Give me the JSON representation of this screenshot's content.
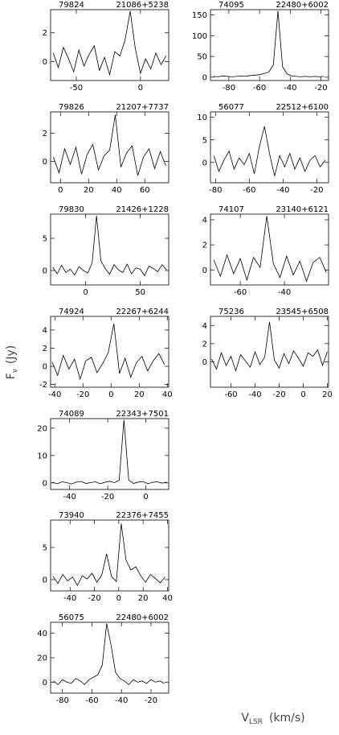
{
  "labels": {
    "y": "F",
    "y_sub": "ν",
    "y_unit": "(Jy)",
    "x": "V",
    "x_sub": "LSR",
    "x_unit": "(km/s)"
  },
  "chart_data": [
    {
      "type": "line",
      "title": "79824",
      "subtitle": "21086+5238",
      "color": "#000000",
      "x": [
        -68,
        -64,
        -60,
        -56,
        -52,
        -48,
        -44,
        -40,
        -36,
        -32,
        -28,
        -24,
        -20,
        -16,
        -12,
        -8,
        -4,
        0,
        4,
        8,
        12,
        16,
        20
      ],
      "values": [
        0.6,
        -0.4,
        1.0,
        0.2,
        -0.7,
        0.8,
        -0.3,
        0.5,
        1.1,
        -0.6,
        0.3,
        -0.9,
        0.7,
        0.4,
        1.5,
        3.5,
        0.9,
        -0.8,
        0.2,
        -0.5,
        0.6,
        -0.2,
        0.4
      ],
      "xlim": [
        -70,
        22
      ],
      "ylim": [
        -1.3,
        3.6
      ],
      "xticks": [
        -50,
        0
      ],
      "yticks": [
        0,
        2
      ]
    },
    {
      "type": "line",
      "title": "74095",
      "subtitle": "22480+6002",
      "color": "#000000",
      "x": [
        -90,
        -87,
        -84,
        -81,
        -78,
        -75,
        -72,
        -69,
        -66,
        -63,
        -60,
        -57,
        -54,
        -51,
        -48,
        -45,
        -42,
        -39,
        -36,
        -33,
        -30,
        -27,
        -24,
        -21,
        -18
      ],
      "values": [
        2,
        1,
        3,
        2,
        1,
        2,
        3,
        2,
        4,
        5,
        6,
        9,
        12,
        30,
        160,
        25,
        8,
        3,
        2,
        1,
        2,
        1,
        2,
        1,
        2
      ],
      "xlim": [
        -92,
        -15
      ],
      "ylim": [
        -8,
        163
      ],
      "xticks": [
        -80,
        -60,
        -40,
        -20
      ],
      "yticks": [
        0,
        50,
        100,
        150
      ]
    },
    {
      "type": "line",
      "title": "79826",
      "subtitle": "21207+7737",
      "color": "#000000",
      "x": [
        -5,
        -1,
        3,
        7,
        11,
        15,
        19,
        23,
        27,
        31,
        35,
        39,
        43,
        47,
        51,
        55,
        59,
        63,
        67,
        71,
        75
      ],
      "values": [
        0.3,
        -0.8,
        0.9,
        -0.2,
        1.0,
        -0.9,
        0.5,
        1.2,
        -0.6,
        0.4,
        0.8,
        3.3,
        -0.4,
        0.6,
        1.1,
        -1.0,
        0.3,
        0.9,
        -0.5,
        0.7,
        -0.3
      ],
      "xlim": [
        -7,
        77
      ],
      "ylim": [
        -1.5,
        3.5
      ],
      "xticks": [
        0,
        20,
        40,
        60
      ],
      "yticks": [
        0,
        2
      ]
    },
    {
      "type": "line",
      "title": "56077",
      "subtitle": "22512+6100",
      "color": "#000000",
      "x": [
        -81,
        -78,
        -75,
        -72,
        -69,
        -66,
        -63,
        -60,
        -57,
        -54,
        -51,
        -48,
        -45,
        -42,
        -39,
        -36,
        -33,
        -30,
        -27,
        -24,
        -21,
        -18,
        -15
      ],
      "values": [
        1.5,
        -2.0,
        0.5,
        2.5,
        -1.5,
        1.0,
        -0.5,
        2.0,
        -2.5,
        3.5,
        8.0,
        2.0,
        -3.0,
        1.5,
        -1.0,
        2.0,
        -1.5,
        1.0,
        -2.0,
        0.5,
        1.5,
        -1.0,
        0.5
      ],
      "xlim": [
        -83,
        -13
      ],
      "ylim": [
        -4.5,
        11.2
      ],
      "xticks": [
        -80,
        -60,
        -40,
        -20
      ],
      "yticks": [
        0,
        5,
        10
      ]
    },
    {
      "type": "line",
      "title": "79830",
      "subtitle": "21426+1228",
      "color": "#000000",
      "x": [
        -30,
        -26,
        -22,
        -18,
        -14,
        -10,
        -6,
        -2,
        2,
        6,
        10,
        14,
        18,
        22,
        26,
        30,
        34,
        38,
        42,
        46,
        50,
        54,
        58,
        62,
        66,
        70,
        74
      ],
      "values": [
        0.5,
        -0.5,
        0.8,
        -0.3,
        0.2,
        -0.7,
        0.6,
        0.0,
        -0.4,
        1.2,
        8.5,
        1.5,
        0.3,
        -0.6,
        0.9,
        0.1,
        -0.3,
        1.0,
        -0.5,
        0.4,
        0.2,
        -0.8,
        0.7,
        0.3,
        -0.2,
        0.9,
        0.1
      ],
      "xlim": [
        -32,
        76
      ],
      "ylim": [
        -2.25,
        8.75
      ],
      "xticks": [
        0,
        50
      ],
      "yticks": [
        0,
        5
      ]
    },
    {
      "type": "line",
      "title": "74107",
      "subtitle": "23140+6121",
      "color": "#000000",
      "x": [
        -72,
        -69,
        -66,
        -63,
        -60,
        -57,
        -54,
        -51,
        -48,
        -45,
        -42,
        -39,
        -36,
        -33,
        -30,
        -27,
        -24,
        -21
      ],
      "values": [
        0.8,
        -0.5,
        1.2,
        -0.3,
        0.9,
        -0.8,
        1.0,
        0.2,
        4.3,
        0.5,
        -0.6,
        1.1,
        -0.4,
        0.7,
        -0.9,
        0.6,
        1.0,
        -0.2
      ],
      "xlim": [
        -73.5,
        -20
      ],
      "ylim": [
        -1.2,
        4.45
      ],
      "xticks": [
        -60,
        -40
      ],
      "yticks": [
        0,
        2,
        4
      ]
    },
    {
      "type": "line",
      "title": "74924",
      "subtitle": "22267+6244",
      "color": "#000000",
      "x": [
        -42,
        -38,
        -34,
        -30,
        -26,
        -22,
        -18,
        -14,
        -10,
        -6,
        -2,
        2,
        6,
        10,
        14,
        18,
        22,
        26,
        30,
        34,
        38
      ],
      "values": [
        0.5,
        -1.0,
        1.2,
        -0.3,
        0.8,
        -1.4,
        0.6,
        1.0,
        -0.7,
        0.3,
        1.5,
        4.7,
        -0.8,
        0.9,
        -1.2,
        0.4,
        1.1,
        -0.5,
        0.6,
        1.4,
        0.2
      ],
      "xlim": [
        -43,
        41
      ],
      "ylim": [
        -2.3,
        5.5
      ],
      "xticks": [
        -40,
        -20,
        0,
        20,
        40
      ],
      "yticks": [
        -2,
        0,
        2,
        4
      ]
    },
    {
      "type": "line",
      "title": "75236",
      "subtitle": "23545+6508",
      "color": "#000000",
      "x": [
        -76,
        -72,
        -68,
        -64,
        -60,
        -56,
        -52,
        -48,
        -44,
        -40,
        -36,
        -32,
        -28,
        -24,
        -20,
        -16,
        -12,
        -8,
        -4,
        0,
        4,
        8,
        12,
        16,
        20
      ],
      "values": [
        0.3,
        -0.8,
        1.0,
        -0.4,
        0.6,
        -1.0,
        0.8,
        0.1,
        -0.6,
        1.1,
        -0.3,
        0.5,
        4.4,
        0.2,
        -0.7,
        0.9,
        -0.2,
        1.2,
        0.4,
        -0.5,
        1.0,
        0.6,
        1.3,
        -0.4,
        1.1
      ],
      "xlim": [
        -77,
        21
      ],
      "ylim": [
        -2.8,
        5
      ],
      "xticks": [
        -60,
        -40,
        -20,
        0,
        20
      ],
      "yticks": [
        0,
        2,
        4
      ]
    },
    {
      "type": "line",
      "title": "74089",
      "subtitle": "22343+7501",
      "color": "#000000",
      "x": [
        -49,
        -46.5,
        -44,
        -41.5,
        -39,
        -36.5,
        -34,
        -31.5,
        -29,
        -26.5,
        -24,
        -21.5,
        -19,
        -16.5,
        -14,
        -11.5,
        -9,
        -6.5,
        -4,
        -1.5,
        1,
        3.5,
        6,
        8.5,
        11
      ],
      "values": [
        0.2,
        -0.3,
        0.4,
        0.1,
        -0.4,
        0.3,
        0.5,
        -0.2,
        0.1,
        0.4,
        -0.3,
        0.2,
        0.6,
        0.1,
        0.9,
        23,
        1.0,
        -0.2,
        0.3,
        0.5,
        -0.3,
        0.2,
        0.4,
        -0.1,
        0.3
      ],
      "xlim": [
        -50,
        12
      ],
      "ylim": [
        -2.4,
        23.5
      ],
      "xticks": [
        -40,
        -20,
        0
      ],
      "yticks": [
        0,
        10,
        20
      ]
    },
    {
      "type": "line",
      "title": "73940",
      "subtitle": "22376+7455",
      "color": "#000000",
      "x": [
        -54,
        -50,
        -46,
        -42,
        -38,
        -34,
        -30,
        -26,
        -22,
        -18,
        -14,
        -10,
        -6,
        -2,
        2,
        6,
        10,
        14,
        18,
        22,
        26,
        30,
        34,
        38
      ],
      "values": [
        0.5,
        -0.6,
        0.8,
        -0.2,
        0.4,
        -0.9,
        0.6,
        0.1,
        1.0,
        -0.4,
        0.7,
        4.0,
        0.5,
        -0.3,
        8.7,
        3.0,
        1.5,
        2.0,
        0.6,
        -0.4,
        0.8,
        0.2,
        -0.5,
        0.4
      ],
      "xlim": [
        -56,
        41
      ],
      "ylim": [
        -1.75,
        9.25
      ],
      "xticks": [
        -40,
        -20,
        0,
        20,
        40
      ],
      "yticks": [
        0,
        5
      ]
    },
    {
      "type": "line",
      "title": "56075",
      "subtitle": "22480+6002",
      "color": "#000000",
      "x": [
        -86,
        -83,
        -80,
        -77,
        -74,
        -71,
        -68,
        -65,
        -62,
        -59,
        -56,
        -53,
        -50,
        -47,
        -44,
        -41,
        -38,
        -35,
        -32,
        -29,
        -26,
        -23,
        -20,
        -17,
        -14,
        -11
      ],
      "values": [
        1,
        -2,
        2,
        0,
        -1,
        3,
        1,
        -2,
        2,
        4,
        6,
        14,
        48,
        30,
        8,
        3,
        1,
        -2,
        2,
        0,
        1,
        -1,
        2,
        0,
        1,
        -1
      ],
      "xlim": [
        -88,
        -8
      ],
      "ylim": [
        -9,
        49
      ],
      "xticks": [
        -80,
        -60,
        -40,
        -20
      ],
      "yticks": [
        0,
        20,
        40
      ]
    }
  ]
}
